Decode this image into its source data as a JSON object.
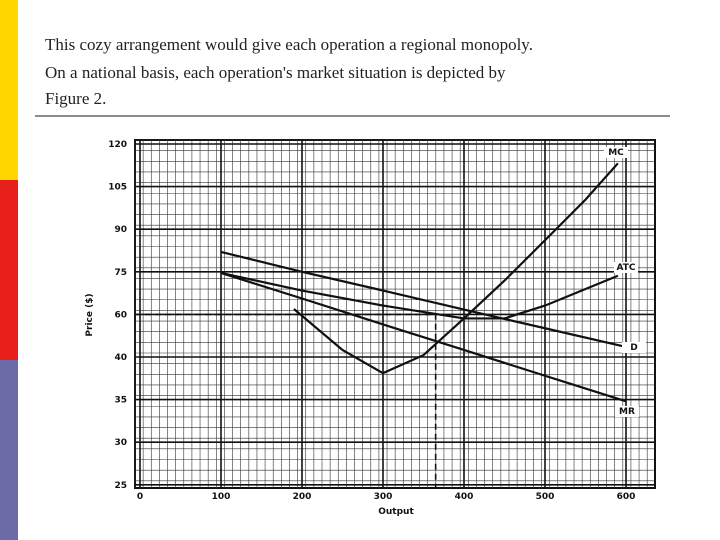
{
  "slide": {
    "text": [
      "This cozy arrangement would  give each operation a regional monopoly.",
      "On a national basis, each operation's market situation is depicted by",
      "Figure 2."
    ]
  },
  "chart_data": {
    "type": "line",
    "y_label": "Price ($)",
    "x_label": "Output",
    "xlim": [
      0,
      600
    ],
    "xticks": [
      0,
      100,
      200,
      300,
      400,
      500,
      600
    ],
    "ylim": [
      25,
      120
    ],
    "yticks": [
      120,
      105,
      90,
      75,
      60,
      40,
      35,
      30,
      25
    ],
    "grid": true,
    "series": [
      {
        "name": "MC",
        "color": "#111111",
        "x": [
          190,
          250,
          300,
          350,
          400,
          450,
          500,
          550,
          590
        ],
        "values": [
          61.9,
          43.3,
          38.1,
          40.9,
          58.1,
          71.9,
          86.1,
          100.4,
          113.2
        ]
      },
      {
        "name": "ATC",
        "color": "#111111",
        "x": [
          100,
          200,
          300,
          400,
          450,
          500,
          590
        ],
        "values": [
          74.6,
          68.4,
          63.1,
          58.1,
          58.1,
          63.1,
          73.6
        ]
      },
      {
        "name": "D",
        "color": "#111111",
        "x": [
          100,
          200,
          300,
          400,
          500,
          600
        ],
        "values": [
          82,
          75,
          68.4,
          61.7,
          53.5,
          44.7
        ]
      },
      {
        "name": "MR",
        "color": "#111111",
        "x": [
          100,
          200,
          300,
          400,
          500,
          600
        ],
        "values": [
          74.6,
          65.6,
          55.3,
          43.3,
          37.8,
          34.8
        ]
      }
    ],
    "guide": {
      "x": 365,
      "y": 60
    }
  }
}
